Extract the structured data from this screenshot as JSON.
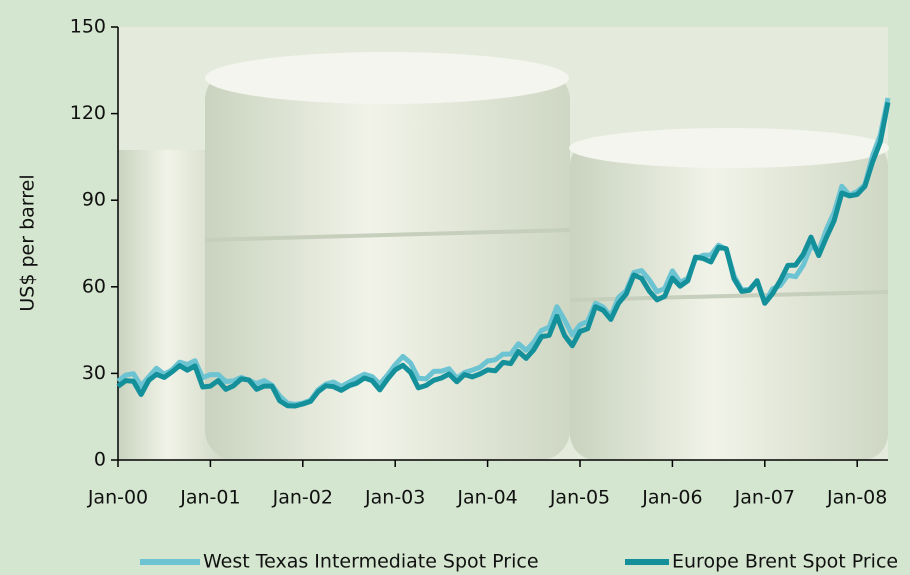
{
  "chart_data": {
    "type": "line",
    "y_label": "US$ per barrel",
    "categories": [
      "Jan-00",
      null,
      null,
      null,
      null,
      null,
      null,
      null,
      null,
      null,
      null,
      null,
      "Jan-01",
      null,
      null,
      null,
      null,
      null,
      null,
      null,
      null,
      null,
      null,
      null,
      "Jan-02",
      null,
      null,
      null,
      null,
      null,
      null,
      null,
      null,
      null,
      null,
      null,
      "Jan-03",
      null,
      null,
      null,
      null,
      null,
      null,
      null,
      null,
      null,
      null,
      null,
      "Jan-04",
      null,
      null,
      null,
      null,
      null,
      null,
      null,
      null,
      null,
      null,
      null,
      "Jan-05",
      null,
      null,
      null,
      null,
      null,
      null,
      null,
      null,
      null,
      null,
      null,
      "Jan-06",
      null,
      null,
      null,
      null,
      null,
      null,
      null,
      null,
      null,
      null,
      null,
      "Jan-07",
      null,
      null,
      null,
      null,
      null,
      null,
      null,
      null,
      null,
      null,
      null,
      "Jan-08",
      null,
      null,
      null,
      null
    ],
    "series": [
      {
        "name": "West Texas Intermediate Spot Price",
        "color": "#6cc3d2",
        "values": [
          27.3,
          29.4,
          29.9,
          25.7,
          28.8,
          31.8,
          29.7,
          31.2,
          33.9,
          33.1,
          34.4,
          28.5,
          29.6,
          29.6,
          27.2,
          27.4,
          28.6,
          27.6,
          26.5,
          27.5,
          25.9,
          22.2,
          19.7,
          19.3,
          19.7,
          20.7,
          24.4,
          26.3,
          27.0,
          25.5,
          26.9,
          28.4,
          29.7,
          28.9,
          26.3,
          29.4,
          33.0,
          35.9,
          33.6,
          28.3,
          28.1,
          30.7,
          30.8,
          31.6,
          28.3,
          30.3,
          31.1,
          32.1,
          34.3,
          34.7,
          36.7,
          36.7,
          40.3,
          38.0,
          40.8,
          44.9,
          46.0,
          53.1,
          48.5,
          43.3,
          46.8,
          48.0,
          54.3,
          53.0,
          49.8,
          56.3,
          58.7,
          65.0,
          65.6,
          62.4,
          58.3,
          59.4,
          65.5,
          61.6,
          62.9,
          69.7,
          70.9,
          71.0,
          74.4,
          73.0,
          63.8,
          58.9,
          59.1,
          62.0,
          54.5,
          59.3,
          60.4,
          64.0,
          63.5,
          67.5,
          74.1,
          72.4,
          79.9,
          85.8,
          94.8,
          91.7,
          93.0,
          95.4,
          105.5,
          112.6,
          125.4
        ]
      },
      {
        "name": "Europe Brent Spot Price",
        "color": "#14909b",
        "values": [
          25.5,
          27.5,
          27.3,
          22.7,
          27.6,
          29.7,
          28.6,
          30.5,
          32.7,
          31.1,
          32.6,
          25.3,
          25.6,
          27.5,
          24.5,
          25.7,
          28.1,
          27.7,
          24.5,
          25.6,
          25.6,
          20.5,
          18.8,
          18.7,
          19.4,
          20.3,
          23.7,
          25.7,
          25.4,
          24.1,
          25.7,
          26.6,
          28.4,
          27.5,
          24.3,
          28.0,
          31.2,
          32.8,
          30.3,
          25.0,
          25.8,
          27.6,
          28.4,
          29.8,
          27.1,
          29.6,
          28.8,
          29.8,
          31.2,
          30.9,
          33.8,
          33.4,
          37.6,
          35.2,
          38.2,
          42.7,
          43.2,
          49.8,
          43.1,
          39.6,
          44.5,
          45.5,
          53.1,
          51.9,
          48.7,
          54.3,
          57.5,
          64.1,
          62.9,
          58.5,
          55.5,
          56.7,
          63.0,
          60.2,
          62.1,
          70.3,
          69.8,
          68.6,
          73.7,
          73.2,
          62.8,
          58.4,
          58.8,
          62.1,
          54.3,
          57.6,
          62.1,
          67.4,
          67.5,
          71.3,
          77.2,
          70.8,
          77.1,
          82.9,
          92.5,
          91.5,
          92.0,
          94.8,
          103.3,
          110.2,
          123.9
        ]
      }
    ],
    "ylim": [
      0,
      150
    ],
    "yticks": [
      0,
      30,
      60,
      90,
      120,
      150
    ],
    "grid": false,
    "legend": "bottom"
  }
}
